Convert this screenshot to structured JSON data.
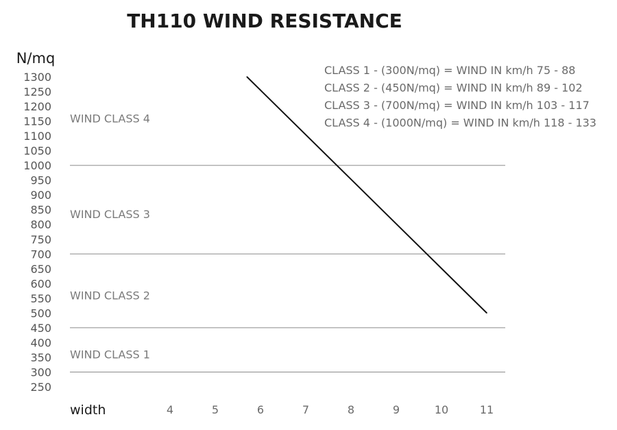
{
  "chart_data": {
    "type": "line",
    "title": "TH110 WIND RESISTANCE",
    "ylabel": "N/mq",
    "xlabel": "width",
    "ylim": [
      250,
      1300
    ],
    "yticks": [
      1300,
      1250,
      1200,
      1150,
      1100,
      1050,
      1000,
      950,
      900,
      850,
      800,
      750,
      700,
      650,
      600,
      550,
      500,
      450,
      400,
      350,
      300,
      250
    ],
    "xticks": [
      4,
      5,
      6,
      7,
      8,
      9,
      10,
      11
    ],
    "series": [
      {
        "x": [
          5.7,
          11
        ],
        "y": [
          1300,
          500
        ]
      }
    ],
    "threshold_lines": [
      1000,
      700,
      450,
      300
    ],
    "zones": [
      {
        "label": "WIND CLASS 4",
        "y": 1160
      },
      {
        "label": "WIND CLASS 3",
        "y": 835
      },
      {
        "label": "WIND CLASS 2",
        "y": 560
      },
      {
        "label": "WIND CLASS 1",
        "y": 360
      }
    ],
    "annotations": [
      "CLASS 1 - (300N/mq) = WIND IN km/h 75 - 88",
      "CLASS 2 - (450N/mq) = WIND IN km/h 89 - 102",
      "CLASS 3 - (700N/mq) = WIND IN km/h 103 - 117",
      "CLASS 4 - (1000N/mq) = WIND IN km/h 118 - 133"
    ],
    "grid": false,
    "colors": {
      "line": "#111111",
      "rule": "#8a8a8a",
      "text": "#6a6a6a"
    }
  }
}
